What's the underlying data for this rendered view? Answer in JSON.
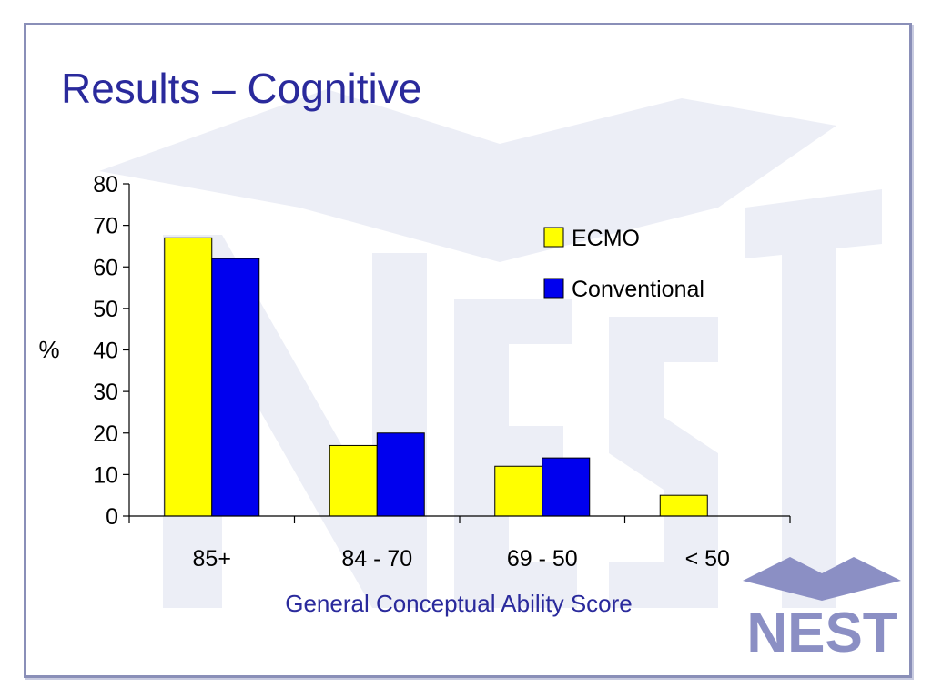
{
  "slide": {
    "title": "Results – Cognitive",
    "logo_text": "NEST"
  },
  "colors": {
    "ecmo": "#ffff00",
    "conventional": "#0000ee",
    "title": "#2a2a9c",
    "axis_label": "#2a2a9c",
    "frame": "#8a8fb8",
    "logo": "#8b8fc4"
  },
  "chart_data": {
    "type": "bar",
    "categories": [
      "85+",
      "84 - 70",
      "69 - 50",
      "< 50"
    ],
    "series": [
      {
        "name": "ECMO",
        "values": [
          67,
          17,
          12,
          5
        ]
      },
      {
        "name": "Conventional",
        "values": [
          62,
          20,
          14,
          0
        ]
      }
    ],
    "xlabel": "General Conceptual Ability Score",
    "ylabel": "%",
    "ylim": [
      0,
      80
    ],
    "yticks": [
      0,
      10,
      20,
      30,
      40,
      50,
      60,
      70,
      80
    ],
    "grid": false,
    "legend_position": "top-right"
  }
}
